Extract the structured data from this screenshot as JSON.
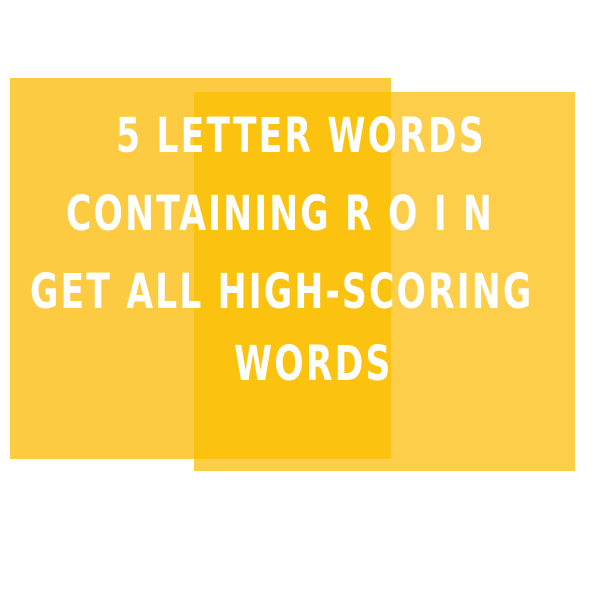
{
  "colors": {
    "background": "#ffffff",
    "panel": "#fcc731",
    "panel_overlap": "#fbc20f",
    "text": "#ffffff"
  },
  "headline": {
    "line_1": "5 LETTER WORDS",
    "line_2": "CONTAINING R O I N",
    "line_3": "GET ALL HIGH-SCORING",
    "line_4": "WORDS"
  }
}
